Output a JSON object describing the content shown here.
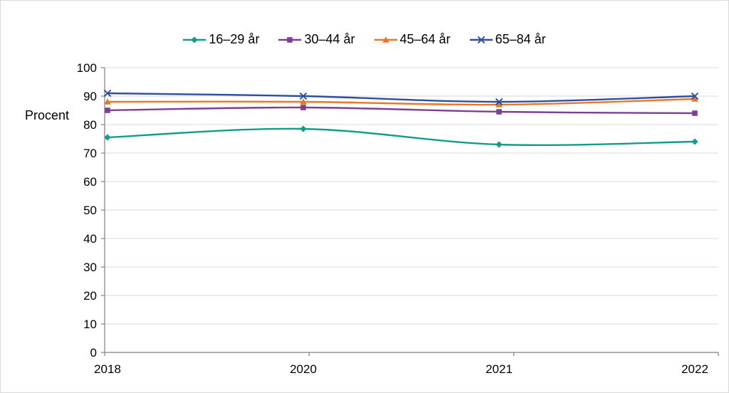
{
  "chart_data": {
    "type": "line",
    "title": "",
    "xlabel": "",
    "ylabel": "Procent",
    "categories": [
      "2018",
      "2020",
      "2021",
      "2022"
    ],
    "series": [
      {
        "name": "16–29 år",
        "marker": "diamond",
        "color": "#119e88",
        "values": [
          75.5,
          78.5,
          73,
          74
        ]
      },
      {
        "name": "30–44 år",
        "marker": "square",
        "color": "#7d3f96",
        "values": [
          85,
          86,
          84.5,
          84
        ]
      },
      {
        "name": "45–64 år",
        "marker": "triangle",
        "color": "#e87824",
        "values": [
          88,
          88,
          87,
          89
        ]
      },
      {
        "name": "65–84 år",
        "marker": "x",
        "color": "#2e4fa1",
        "values": [
          91,
          90,
          88,
          90
        ]
      }
    ],
    "ylim": [
      0,
      100
    ],
    "ytick_step": 10,
    "y_tick_labels": [
      "0",
      "10",
      "20",
      "30",
      "40",
      "50",
      "60",
      "70",
      "80",
      "90",
      "100"
    ],
    "grid": "horizontal",
    "legend_position": "top",
    "colors": {
      "grid": "#d9d9d9",
      "axis": "#808080",
      "text": "#000000",
      "frame_border": "#d9d9d9"
    }
  }
}
